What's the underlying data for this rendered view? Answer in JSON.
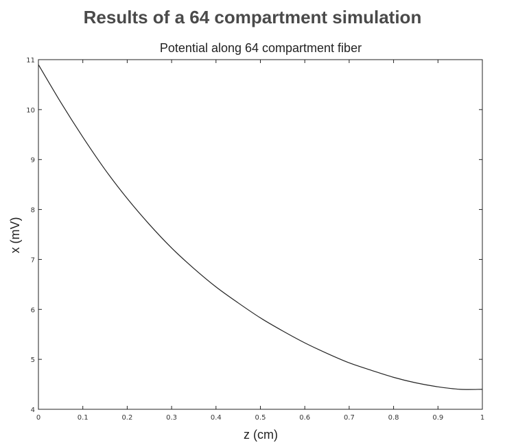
{
  "heading": "Results of a 64 compartment simulation",
  "chart_data": {
    "type": "line",
    "title": "Potential along 64 compartment fiber",
    "xlabel": "z (cm)",
    "ylabel": "x (mV)",
    "xlim": [
      0,
      1
    ],
    "ylim": [
      4,
      11
    ],
    "xticks": [
      0,
      0.1,
      0.2,
      0.3,
      0.4,
      0.5,
      0.6,
      0.7,
      0.8,
      0.9,
      1
    ],
    "xtick_labels": [
      "0",
      "0.1",
      "0.2",
      "0.3",
      "0.4",
      "0.5",
      "0.6",
      "0.7",
      "0.8",
      "0.9",
      "1"
    ],
    "yticks": [
      4,
      5,
      6,
      7,
      8,
      9,
      10,
      11
    ],
    "ytick_labels": [
      "4",
      "5",
      "6",
      "7",
      "8",
      "9",
      "10",
      "11"
    ],
    "grid": false,
    "line_color": "#222222",
    "series": [
      {
        "x": [
          0,
          0.05,
          0.1,
          0.15,
          0.2,
          0.25,
          0.3,
          0.35,
          0.4,
          0.45,
          0.5,
          0.55,
          0.6,
          0.65,
          0.7,
          0.75,
          0.8,
          0.85,
          0.9,
          0.95,
          1.0
        ],
        "values": [
          10.9,
          10.15,
          9.45,
          8.8,
          8.22,
          7.7,
          7.23,
          6.82,
          6.45,
          6.13,
          5.83,
          5.57,
          5.33,
          5.12,
          4.93,
          4.78,
          4.64,
          4.53,
          4.45,
          4.4,
          4.4
        ]
      }
    ]
  }
}
